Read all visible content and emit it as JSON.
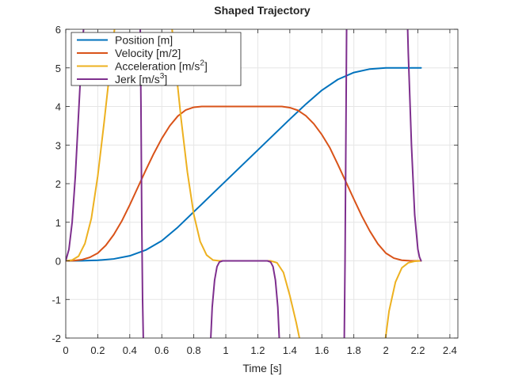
{
  "chart_data": {
    "type": "line",
    "title": "Shaped Trajectory",
    "xlabel": "Time [s]",
    "ylabel": "",
    "xlim": [
      0,
      2.45
    ],
    "ylim": [
      -2,
      6
    ],
    "xticks": [
      0,
      0.2,
      0.4,
      0.6,
      0.8,
      1,
      1.2,
      1.4,
      1.6,
      1.8,
      2,
      2.2,
      2.4
    ],
    "xtick_labels": [
      "0",
      "0.2",
      "0.4",
      "0.6",
      "0.8",
      "1",
      "1.2",
      "1.4",
      "1.6",
      "1.8",
      "2",
      "2.2",
      "2.4"
    ],
    "yticks": [
      -2,
      -1,
      0,
      1,
      2,
      3,
      4,
      5,
      6
    ],
    "ytick_labels": [
      "-2",
      "-1",
      "0",
      "1",
      "2",
      "3",
      "4",
      "5",
      "6"
    ],
    "grid": true,
    "legend_position": "top-left",
    "series": [
      {
        "name": "Position [m]",
        "legend": {
          "main": "Position [m]",
          "sup": ""
        },
        "color": "#0072BD",
        "x": [
          0,
          0.1,
          0.2,
          0.3,
          0.4,
          0.5,
          0.6,
          0.7,
          0.8,
          0.9,
          1.0,
          1.1,
          1.2,
          1.3,
          1.4,
          1.5,
          1.6,
          1.7,
          1.8,
          1.9,
          2.0,
          2.1,
          2.22
        ],
        "y": [
          0,
          0.002,
          0.015,
          0.05,
          0.13,
          0.28,
          0.52,
          0.87,
          1.27,
          1.67,
          2.07,
          2.47,
          2.87,
          3.27,
          3.67,
          4.06,
          4.42,
          4.7,
          4.88,
          4.97,
          5.0,
          5.0,
          5.0
        ]
      },
      {
        "name": "Velocity [m/2]",
        "legend": {
          "main": "Velocity [m/2]",
          "sup": ""
        },
        "color": "#D95319",
        "x": [
          0,
          0.05,
          0.1,
          0.15,
          0.2,
          0.25,
          0.3,
          0.35,
          0.4,
          0.45,
          0.5,
          0.55,
          0.6,
          0.65,
          0.7,
          0.75,
          0.8,
          0.85,
          0.9,
          0.95,
          1.0,
          1.1,
          1.2,
          1.3,
          1.35,
          1.4,
          1.45,
          1.5,
          1.55,
          1.6,
          1.65,
          1.7,
          1.75,
          1.8,
          1.85,
          1.9,
          1.95,
          2.0,
          2.05,
          2.1,
          2.15,
          2.2,
          2.22
        ],
        "y": [
          0,
          0.005,
          0.03,
          0.09,
          0.2,
          0.4,
          0.68,
          1.03,
          1.45,
          1.9,
          2.35,
          2.78,
          3.17,
          3.5,
          3.75,
          3.91,
          3.98,
          4.0,
          4.0,
          4.0,
          4.0,
          4.0,
          4.0,
          4.0,
          4.0,
          3.97,
          3.9,
          3.76,
          3.55,
          3.27,
          2.93,
          2.5,
          2.05,
          1.6,
          1.16,
          0.77,
          0.44,
          0.2,
          0.07,
          0.015,
          0.002,
          0,
          0
        ]
      },
      {
        "name": "Acceleration [m/s2]",
        "legend": {
          "main": "Acceleration [m/s",
          "sup": "2",
          "tail": "]"
        },
        "color": "#EDB120",
        "x": [
          0,
          0.04,
          0.08,
          0.12,
          0.16,
          0.2,
          0.24,
          0.28,
          0.31,
          0.66,
          0.68,
          0.72,
          0.76,
          0.8,
          0.84,
          0.88,
          0.92,
          0.96,
          1.0,
          1.1,
          1.2,
          1.28,
          1.32,
          1.36,
          1.4,
          1.44,
          1.465,
          1.995,
          2.02,
          2.06,
          2.1,
          2.14,
          2.18,
          2.22
        ],
        "y": [
          0,
          0.02,
          0.12,
          0.45,
          1.1,
          2.2,
          3.6,
          5.1,
          6.2,
          6.2,
          5.3,
          3.7,
          2.3,
          1.2,
          0.5,
          0.15,
          0.02,
          0,
          0,
          0,
          0,
          0,
          -0.05,
          -0.3,
          -0.9,
          -1.6,
          -2.1,
          -2.1,
          -1.3,
          -0.55,
          -0.18,
          -0.05,
          -0.01,
          0
        ]
      },
      {
        "name": "Jerk [m/s3]",
        "legend": {
          "main": "Jerk [m/s",
          "sup": "3",
          "tail": "]"
        },
        "color": "#7E2F8E",
        "x": [
          0,
          0.02,
          0.04,
          0.06,
          0.08,
          0.1,
          0.115,
          0.465,
          0.47,
          0.475,
          0.48,
          0.485,
          0.905,
          0.915,
          0.93,
          0.945,
          0.96,
          0.98,
          1.0,
          1.1,
          1.2,
          1.26,
          1.28,
          1.295,
          1.31,
          1.325,
          1.335,
          1.74,
          1.745,
          1.75,
          1.755,
          2.135,
          2.14,
          2.16,
          2.18,
          2.2,
          2.21,
          2.22
        ],
        "y": [
          0,
          0.3,
          1.0,
          2.2,
          3.8,
          5.4,
          6.2,
          6.2,
          4.0,
          1.0,
          -1.0,
          -2.1,
          -2.1,
          -1.2,
          -0.5,
          -0.15,
          -0.03,
          0,
          0,
          0,
          0,
          0,
          -0.03,
          -0.15,
          -0.5,
          -1.2,
          -2.1,
          -2.1,
          0.0,
          3.0,
          6.2,
          6.2,
          5.4,
          3.0,
          1.2,
          0.3,
          0.1,
          0
        ]
      }
    ]
  }
}
